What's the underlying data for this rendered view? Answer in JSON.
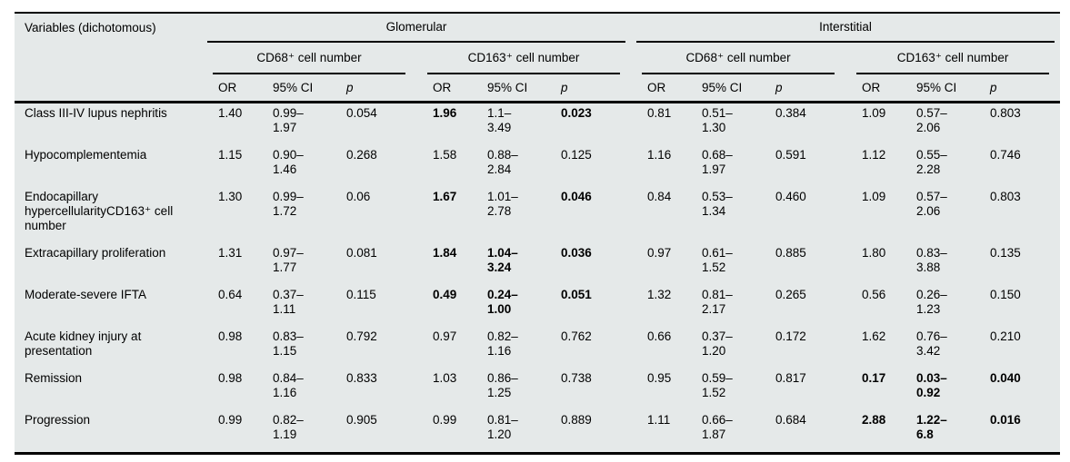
{
  "page": {
    "background": "#ffffff"
  },
  "table": {
    "background": "#e5e9e9",
    "border_color": "#000000",
    "corner_header": "Variables (dichotomous)",
    "region_headers": [
      "Glomerular",
      "Interstitial"
    ],
    "marker_headers": [
      "CD68⁺ cell number",
      "CD163⁺ cell number",
      "CD68⁺ cell number",
      "CD163⁺ cell number"
    ],
    "stat_headers": [
      "OR",
      "95% CI",
      "p"
    ],
    "rows": [
      {
        "label": "Class III-IV lupus nephritis",
        "cells": [
          {
            "or": "1.40",
            "ci": [
              "0.99–",
              "1.97"
            ],
            "p": "0.054"
          },
          {
            "or": "1.96",
            "ci": [
              "1.1–",
              "3.49"
            ],
            "p": "0.023",
            "bold": [
              "or",
              "p"
            ]
          },
          {
            "or": "0.81",
            "ci": [
              "0.51–",
              "1.30"
            ],
            "p": "0.384"
          },
          {
            "or": "1.09",
            "ci": [
              "0.57–",
              "2.06"
            ],
            "p": "0.803"
          }
        ]
      },
      {
        "label": "Hypocomplementemia",
        "cells": [
          {
            "or": "1.15",
            "ci": [
              "0.90–",
              "1.46"
            ],
            "p": "0.268"
          },
          {
            "or": "1.58",
            "ci": [
              "0.88–",
              "2.84"
            ],
            "p": "0.125"
          },
          {
            "or": "1.16",
            "ci": [
              "0.68–",
              "1.97"
            ],
            "p": "0.591"
          },
          {
            "or": "1.12",
            "ci": [
              "0.55–",
              "2.28"
            ],
            "p": "0.746"
          }
        ]
      },
      {
        "label": "Endocapillary hypercellularityCD163⁺ cell number",
        "cells": [
          {
            "or": "1.30",
            "ci": [
              "0.99–",
              "1.72"
            ],
            "p": "0.06"
          },
          {
            "or": "1.67",
            "ci": [
              "1.01–",
              "2.78"
            ],
            "p": "0.046",
            "bold": [
              "or",
              "p"
            ]
          },
          {
            "or": "0.84",
            "ci": [
              "0.53–",
              "1.34"
            ],
            "p": "0.460"
          },
          {
            "or": "1.09",
            "ci": [
              "0.57–",
              "2.06"
            ],
            "p": "0.803"
          }
        ]
      },
      {
        "label": "Extracapillary proliferation",
        "cells": [
          {
            "or": "1.31",
            "ci": [
              "0.97–",
              "1.77"
            ],
            "p": "0.081"
          },
          {
            "or": "1.84",
            "ci": [
              "1.04–",
              "3.24"
            ],
            "p": "0.036",
            "bold": [
              "or",
              "ci",
              "p"
            ]
          },
          {
            "or": "0.97",
            "ci": [
              "0.61–",
              "1.52"
            ],
            "p": "0.885"
          },
          {
            "or": "1.80",
            "ci": [
              "0.83–",
              "3.88"
            ],
            "p": "0.135"
          }
        ]
      },
      {
        "label": "Moderate-severe IFTA",
        "cells": [
          {
            "or": "0.64",
            "ci": [
              "0.37–",
              "1.11"
            ],
            "p": "0.115"
          },
          {
            "or": "0.49",
            "ci": [
              "0.24–",
              "1.00"
            ],
            "p": "0.051",
            "bold": [
              "or",
              "ci",
              "p"
            ]
          },
          {
            "or": "1.32",
            "ci": [
              "0.81–",
              "2.17"
            ],
            "p": "0.265"
          },
          {
            "or": "0.56",
            "ci": [
              "0.26–",
              "1.23"
            ],
            "p": "0.150"
          }
        ]
      },
      {
        "label": "Acute kidney injury at presentation",
        "cells": [
          {
            "or": "0.98",
            "ci": [
              "0.83–",
              "1.15"
            ],
            "p": "0.792"
          },
          {
            "or": "0.97",
            "ci": [
              "0.82–",
              "1.16"
            ],
            "p": "0.762"
          },
          {
            "or": "0.66",
            "ci": [
              "0.37–",
              "1.20"
            ],
            "p": "0.172"
          },
          {
            "or": "1.62",
            "ci": [
              "0.76–",
              "3.42"
            ],
            "p": "0.210"
          }
        ]
      },
      {
        "label": "Remission",
        "cells": [
          {
            "or": "0.98",
            "ci": [
              "0.84–",
              "1.16"
            ],
            "p": "0.833"
          },
          {
            "or": "1.03",
            "ci": [
              "0.86–",
              "1.25"
            ],
            "p": "0.738"
          },
          {
            "or": "0.95",
            "ci": [
              "0.59–",
              "1.52"
            ],
            "p": "0.817"
          },
          {
            "or": "0.17",
            "ci": [
              "0.03–",
              "0.92"
            ],
            "p": "0.040",
            "bold": [
              "or",
              "ci",
              "p"
            ]
          }
        ]
      },
      {
        "label": "Progression",
        "cells": [
          {
            "or": "0.99",
            "ci": [
              "0.82–",
              "1.19"
            ],
            "p": "0.905"
          },
          {
            "or": "0.99",
            "ci": [
              "0.81–",
              "1.20"
            ],
            "p": "0.889"
          },
          {
            "or": "1.11",
            "ci": [
              "0.66–",
              "1.87"
            ],
            "p": "0.684"
          },
          {
            "or": "2.88",
            "ci": [
              "1.22–",
              "6.8"
            ],
            "p": "0.016",
            "bold": [
              "or",
              "ci",
              "p"
            ]
          }
        ]
      }
    ]
  }
}
